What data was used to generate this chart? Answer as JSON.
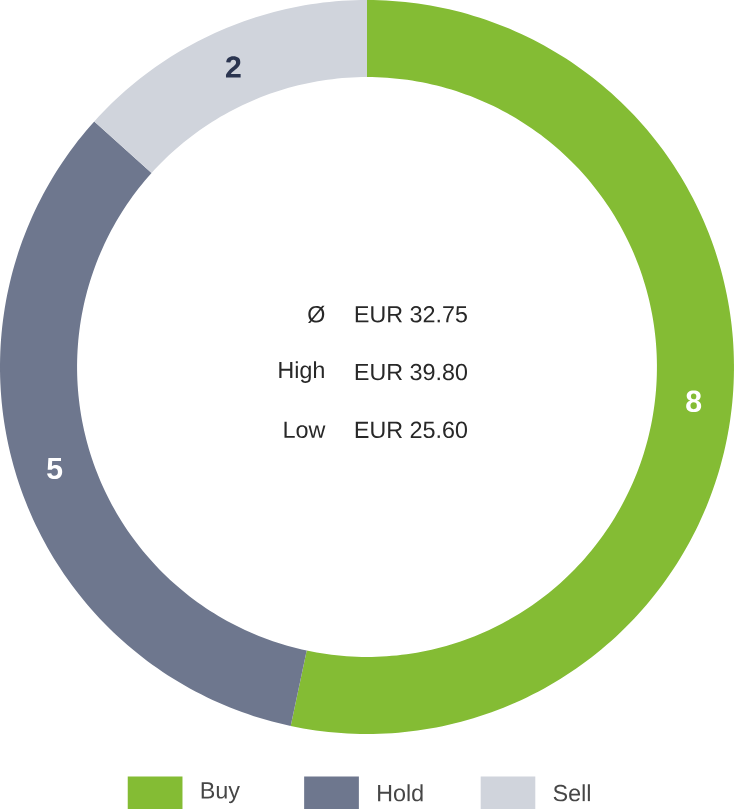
{
  "chart_data": {
    "type": "donut",
    "categories": [
      "Buy",
      "Hold",
      "Sell"
    ],
    "values": [
      8,
      5,
      2
    ],
    "colors": [
      "#84bc34",
      "#6e778e",
      "#d0d4dc"
    ],
    "data_labels": true,
    "legend": "bottom",
    "annotations": [
      "Ø",
      "EUR 32.75",
      "High",
      "EUR 39.80",
      "Low",
      "EUR 25.60"
    ]
  }
}
